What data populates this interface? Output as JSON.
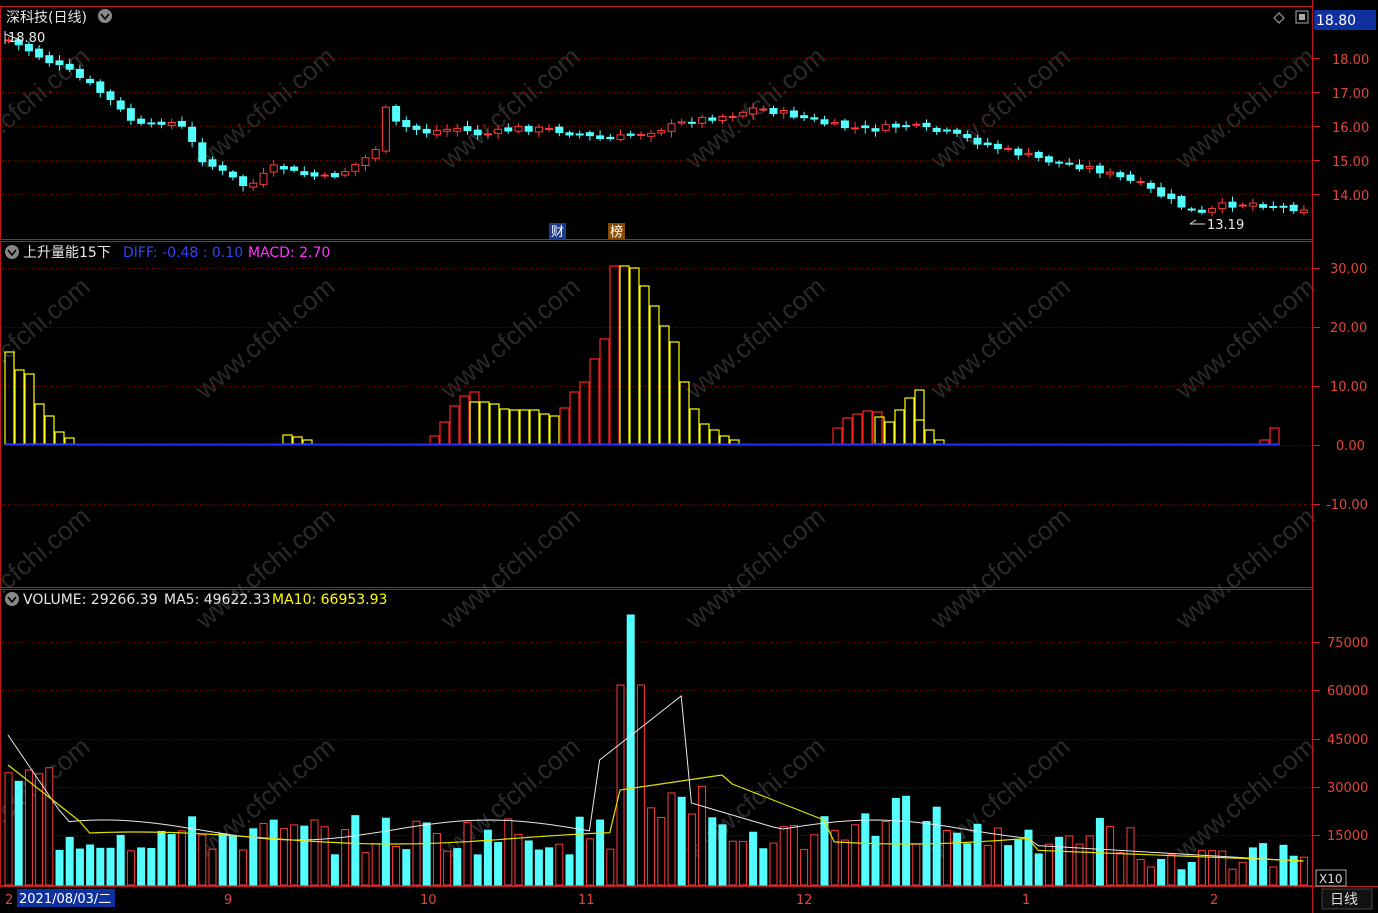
{
  "header": {
    "stock_title": "深科技(日线)",
    "high_marker": "18.80",
    "low_marker": "13.19",
    "price_box": "18.80",
    "event_badges": [
      "财",
      "榜"
    ]
  },
  "price_axis": [
    "18.00",
    "17.00",
    "16.00",
    "15.00",
    "14.00"
  ],
  "indicator": {
    "name": "上升量能15下",
    "diff_text": "DIFF: -0.48 : 0.10",
    "macd_text": "MACD: 2.70",
    "axis": [
      "30.00",
      "20.00",
      "10.00",
      "0.00",
      "-10.00"
    ]
  },
  "volume": {
    "vol_text": "VOLUME: 29266.39",
    "ma5_text": "MA5: 49622.33",
    "ma10_text": "MA10: 66953.93",
    "axis": [
      "75000",
      "60000",
      "45000",
      "30000",
      "15000"
    ],
    "unit": "X10"
  },
  "date_axis": {
    "selected_date": "2021/08/03/二",
    "months": [
      "9",
      "10",
      "11",
      "12",
      "1",
      "2"
    ],
    "period_button": "日线",
    "left_mark": "2"
  },
  "watermark": "www.cfchi.com",
  "colors": {
    "up": "#ff3b3b",
    "down": "#54ffff",
    "ma5": "#ffffff",
    "ma10": "#ffff00",
    "grid": "#7a0000",
    "axis": "#cc2020"
  }
}
